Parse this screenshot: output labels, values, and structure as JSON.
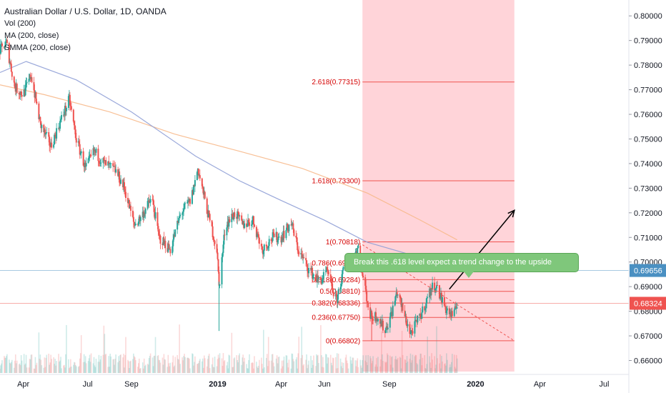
{
  "header": {
    "title": "Australian Dollar / U.S. Dollar, 1D, OANDA",
    "indicators": [
      "Vol (200)",
      "MA (200, close)",
      "SMMA (200, close)"
    ]
  },
  "annotation": {
    "text": "Break this .618 level expect a trend change to the upside"
  },
  "colors": {
    "up_candle": "#26a69a",
    "down_candle": "#ef5350",
    "ma_line": "#8f9ed6",
    "smma_line": "#f7b98b",
    "fib_line": "#ef5350",
    "fib_label": "#d50000",
    "shade": "#ffcdd2",
    "price_tag_blue": "#4a90c2",
    "price_tag_red": "#ef5350",
    "annotation_bg": "#7fc77b"
  },
  "chart_data": {
    "type": "candlestick",
    "title": "Australian Dollar / U.S. Dollar, 1D, OANDA",
    "y_axis": {
      "ticks": [
        "0.80000",
        "0.79000",
        "0.78000",
        "0.77000",
        "0.76000",
        "0.75000",
        "0.74000",
        "0.73000",
        "0.72000",
        "0.71000",
        "0.70000",
        "0.69000",
        "0.68000",
        "0.67000",
        "0.66000"
      ],
      "ylim": [
        0.6555,
        0.805
      ],
      "position": "right"
    },
    "x_axis": {
      "ticks": [
        "Apr",
        "Jul",
        "Sep",
        "2019",
        "Apr",
        "Jun",
        "Sep",
        "2020",
        "Apr",
        "Jul"
      ],
      "tick_dates": [
        "2018-04-01",
        "2018-07-01",
        "2018-09-01",
        "2019-01-01",
        "2019-04-01",
        "2019-06-01",
        "2019-09-01",
        "2020-01-01",
        "2020-04-01",
        "2020-07-01"
      ],
      "xlim": [
        "2018-02-27",
        "2020-08-05"
      ]
    },
    "price_path": [
      [
        "2018-02-27",
        0.786
      ],
      [
        "2018-03-08",
        0.789
      ],
      [
        "2018-03-20",
        0.771
      ],
      [
        "2018-04-01",
        0.768
      ],
      [
        "2018-04-12",
        0.776
      ],
      [
        "2018-04-25",
        0.756
      ],
      [
        "2018-05-10",
        0.747
      ],
      [
        "2018-05-22",
        0.756
      ],
      [
        "2018-06-05",
        0.766
      ],
      [
        "2018-06-15",
        0.75
      ],
      [
        "2018-06-28",
        0.738
      ],
      [
        "2018-07-10",
        0.745
      ],
      [
        "2018-07-25",
        0.74
      ],
      [
        "2018-08-10",
        0.737
      ],
      [
        "2018-08-22",
        0.73
      ],
      [
        "2018-09-05",
        0.715
      ],
      [
        "2018-09-14",
        0.718
      ],
      [
        "2018-09-30",
        0.726
      ],
      [
        "2018-10-10",
        0.71
      ],
      [
        "2018-10-26",
        0.705
      ],
      [
        "2018-11-10",
        0.72
      ],
      [
        "2018-11-24",
        0.725
      ],
      [
        "2018-12-04",
        0.738
      ],
      [
        "2018-12-18",
        0.72
      ],
      [
        "2018-12-31",
        0.705
      ],
      [
        "2019-01-03",
        0.69
      ],
      [
        "2019-01-12",
        0.715
      ],
      [
        "2019-01-26",
        0.72
      ],
      [
        "2019-02-05",
        0.715
      ],
      [
        "2019-02-20",
        0.717
      ],
      [
        "2019-03-05",
        0.705
      ],
      [
        "2019-03-20",
        0.71
      ],
      [
        "2019-04-01",
        0.71
      ],
      [
        "2019-04-15",
        0.716
      ],
      [
        "2019-04-25",
        0.705
      ],
      [
        "2019-05-10",
        0.697
      ],
      [
        "2019-05-25",
        0.692
      ],
      [
        "2019-06-05",
        0.696
      ],
      [
        "2019-06-18",
        0.684
      ],
      [
        "2019-07-01",
        0.7
      ],
      [
        "2019-07-12",
        0.702
      ],
      [
        "2019-07-20",
        0.707
      ],
      [
        "2019-07-25",
        0.695
      ],
      [
        "2019-08-05",
        0.678
      ],
      [
        "2019-08-15",
        0.678
      ],
      [
        "2019-08-26",
        0.672
      ],
      [
        "2019-09-05",
        0.68
      ],
      [
        "2019-09-12",
        0.688
      ],
      [
        "2019-09-25",
        0.676
      ],
      [
        "2019-10-01",
        0.671
      ],
      [
        "2019-10-15",
        0.678
      ],
      [
        "2019-10-30",
        0.689
      ],
      [
        "2019-11-05",
        0.691
      ],
      [
        "2019-11-20",
        0.681
      ],
      [
        "2019-12-01",
        0.6775
      ],
      [
        "2019-12-06",
        0.6835
      ]
    ],
    "series": [
      {
        "name": "MA (200, close)",
        "type": "line",
        "points": [
          [
            "2018-02-27",
            0.777
          ],
          [
            "2018-04-05",
            0.7815
          ],
          [
            "2018-06-15",
            0.774
          ],
          [
            "2018-09-01",
            0.761
          ],
          [
            "2018-12-01",
            0.743
          ],
          [
            "2019-02-01",
            0.733
          ],
          [
            "2019-04-01",
            0.725
          ],
          [
            "2019-06-01",
            0.717
          ],
          [
            "2019-08-01",
            0.708
          ],
          [
            "2019-10-01",
            0.703
          ],
          [
            "2019-12-06",
            0.6965
          ]
        ]
      },
      {
        "name": "SMMA (200, close)",
        "type": "line",
        "points": [
          [
            "2018-02-27",
            0.772
          ],
          [
            "2018-05-01",
            0.768
          ],
          [
            "2018-08-01",
            0.761
          ],
          [
            "2018-11-01",
            0.752
          ],
          [
            "2019-02-01",
            0.745
          ],
          [
            "2019-05-01",
            0.738
          ],
          [
            "2019-08-01",
            0.728
          ],
          [
            "2019-10-15",
            0.717
          ],
          [
            "2019-12-06",
            0.709
          ]
        ]
      },
      {
        "name": "Vol (200)",
        "type": "volume_histogram",
        "ylim": [
          0,
          1
        ]
      }
    ],
    "fibonacci": {
      "start_date": "2019-07-25",
      "end_date": "2020-02-25",
      "levels": [
        {
          "ratio": "2.618",
          "price": 0.77315,
          "label": "2.618(0.77315)"
        },
        {
          "ratio": "1.618",
          "price": 0.733,
          "label": "1.618(0.73300)"
        },
        {
          "ratio": "1",
          "price": 0.70818,
          "label": "1(0.70818)"
        },
        {
          "ratio": "0.786",
          "price": 0.69958,
          "label": "0.786(0.69958)"
        },
        {
          "ratio": "0.618",
          "price": 0.69284,
          "label": "0.618(0.69284)"
        },
        {
          "ratio": "0.5",
          "price": 0.6881,
          "label": "0.5(0.68810)"
        },
        {
          "ratio": "0.382",
          "price": 0.68336,
          "label": "0.382(0.68336)"
        },
        {
          "ratio": "0.236",
          "price": 0.6775,
          "label": "0.236(0.67750)"
        },
        {
          "ratio": "0",
          "price": 0.66802,
          "label": "0(0.66802)"
        }
      ]
    },
    "projection_arrow": {
      "from": [
        "2019-11-25",
        0.689
      ],
      "to": [
        "2020-02-25",
        0.721
      ]
    },
    "trend_line": {
      "from": [
        "2019-07-25",
        0.707
      ],
      "to": [
        "2020-02-25",
        0.668
      ]
    },
    "price_tags": [
      {
        "label": "0.69656",
        "price": 0.69656,
        "color": "#4a90c2",
        "horizontal_line": true
      },
      {
        "label": "0.68324",
        "price": 0.68324,
        "color": "#ef5350",
        "horizontal_line": true
      }
    ],
    "grid": false
  }
}
